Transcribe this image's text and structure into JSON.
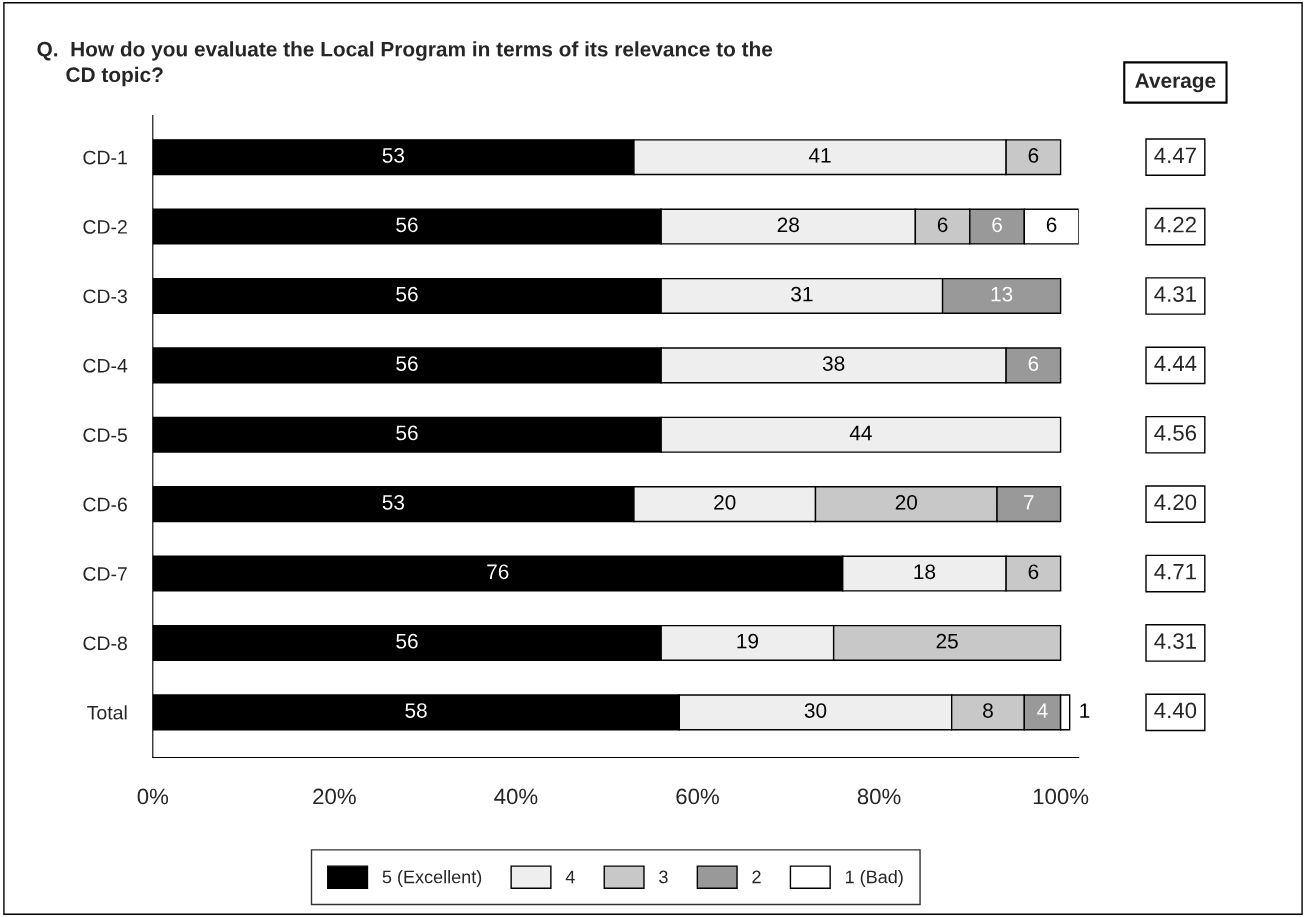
{
  "chart_data": {
    "type": "bar",
    "orientation": "horizontal",
    "stacked": true,
    "title": "Q.  How do you evaluate the Local Program in terms of its relevance to the\n     CD topic?",
    "categories": [
      "CD-1",
      "CD-2",
      "CD-3",
      "CD-4",
      "CD-5",
      "CD-6",
      "CD-7",
      "CD-8",
      "Total"
    ],
    "series": [
      {
        "name": "5 (Excellent)",
        "color": "#000000",
        "values": [
          53,
          56,
          56,
          56,
          56,
          53,
          76,
          56,
          58
        ],
        "value_labels": [
          "53",
          "56",
          "56",
          "56",
          "56",
          "53",
          "76",
          "56",
          "58"
        ]
      },
      {
        "name": "4",
        "color": "#eeeeee",
        "values": [
          41,
          28,
          31,
          38,
          44,
          20,
          18,
          19,
          30
        ],
        "value_labels": [
          "41",
          "28",
          "31",
          "38",
          "44",
          "20",
          "18",
          "19",
          "30"
        ]
      },
      {
        "name": "3",
        "color": "#c8c8c8",
        "values": [
          6,
          6,
          null,
          null,
          null,
          20,
          6,
          25,
          8
        ],
        "value_labels": [
          "6",
          "6",
          null,
          null,
          null,
          "20",
          "6",
          "25",
          "8"
        ]
      },
      {
        "name": "2",
        "color": "#999999",
        "values": [
          null,
          6,
          13,
          6,
          null,
          7,
          null,
          null,
          4
        ],
        "value_labels": [
          null,
          "6",
          "13",
          "6",
          null,
          "7",
          null,
          null,
          "4"
        ]
      },
      {
        "name": "1 (Bad)",
        "color": "#ffffff",
        "values": [
          null,
          6,
          null,
          null,
          null,
          null,
          null,
          null,
          1
        ],
        "value_labels": [
          null,
          "6",
          null,
          null,
          null,
          null,
          null,
          null,
          "1"
        ]
      }
    ],
    "xlim": [
      0,
      102
    ],
    "xticks": [
      {
        "value": 0,
        "label": "0%"
      },
      {
        "value": 20,
        "label": "20%"
      },
      {
        "value": 40,
        "label": "40%"
      },
      {
        "value": 60,
        "label": "60%"
      },
      {
        "value": 80,
        "label": "80%"
      },
      {
        "value": 100,
        "label": "100%"
      }
    ],
    "annotations": [
      "Average",
      "4.47",
      "4.22",
      "4.31",
      "4.44",
      "4.56",
      "4.20",
      "4.71",
      "4.31",
      "4.40"
    ],
    "legend": "bottom",
    "grid": false
  }
}
